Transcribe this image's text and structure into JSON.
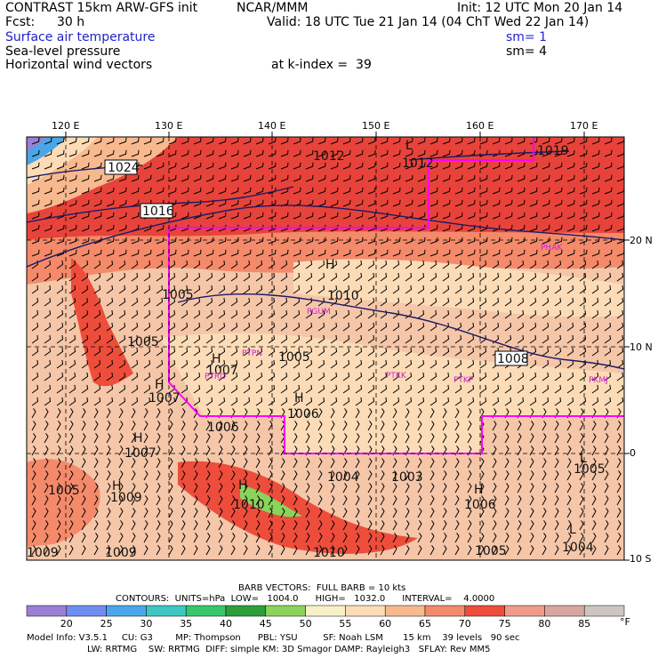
{
  "header": {
    "model_title": "CONTRAST 15km ARW-GFS init",
    "org": "NCAR/MMM",
    "init": "Init: 12 UTC Mon 20 Jan 14",
    "fcst_label": "Fcst:",
    "fcst_value": "30 h",
    "valid": "Valid: 18 UTC Tue 21 Jan 14 (04 ChT Wed 22 Jan 14)",
    "field1": "Surface air temperature",
    "field1_sm": "sm= 1",
    "field2": "Sea-level pressure",
    "field2_sm": "sm= 4",
    "field3": "Horizontal wind vectors",
    "kindex": "at k-index =  39"
  },
  "map": {
    "lon_ticks": [
      "120 E",
      "130 E",
      "140 E",
      "150 E",
      "160 E",
      "170 E"
    ],
    "lat_ticks": [
      "20 N",
      "10 N",
      "0",
      "10 S"
    ],
    "pressure_labels": [
      "1024",
      "1016",
      "1012",
      "1012",
      "1019",
      "1005",
      "1005",
      "1010",
      "1007",
      "1005",
      "1007",
      "1006",
      "1006",
      "1007",
      "1005",
      "1009",
      "1004",
      "1003",
      "1006",
      "1008",
      "1005",
      "1004",
      "1010",
      "1010",
      "1009",
      "1009",
      "1005"
    ],
    "high_marks": [
      "H",
      "H",
      "H",
      "H",
      "H",
      "H",
      "H",
      "H"
    ],
    "low_marks": [
      "L",
      "L",
      "L"
    ],
    "station_labels": [
      "PHAK",
      "PGUM",
      "PTKK",
      "PTKP",
      "PKMJ",
      "PTPN",
      "PTRO"
    ],
    "colors": {
      "boundary": "#ff00ff",
      "isobar": "#1a1a66",
      "cool": "#7b68ee",
      "warm": "#f5c6a8",
      "hot": "#e8433a"
    }
  },
  "footer": {
    "barb_line": "BARB VECTORS:  FULL BARB = 10 kts",
    "contours": "CONTOURS:  UNITS=hPa  LOW=   1004.0      HIGH=   1032.0      INTERVAL=    4.0000",
    "colorbar_labels": [
      "20",
      "25",
      "30",
      "35",
      "40",
      "45",
      "50",
      "55",
      "60",
      "65",
      "70",
      "75",
      "80",
      "85"
    ],
    "colorbar_unit": "°F",
    "colorbar_colors": [
      "#9b7fd4",
      "#6f8ef0",
      "#4aa6e8",
      "#3ec6c2",
      "#37c66b",
      "#2e9e3a",
      "#8ad35c",
      "#f7f0c8",
      "#fcdcb7",
      "#f8b98e",
      "#f48a6a",
      "#ee4d3c",
      "#f09a8c",
      "#d9a5a1",
      "#cfc5c0"
    ],
    "model_info": "Model Info: V3.5.1     CU: G3        MP: Thompson      PBL: YSU         SF: Noah LSM       15 km    39 levels   90 sec",
    "model_info2": "LW: RRTMG    SW: RRTMG  DIFF: simple KM: 3D Smagor DAMP: Rayleigh3   SFLAY: Rev MM5"
  }
}
